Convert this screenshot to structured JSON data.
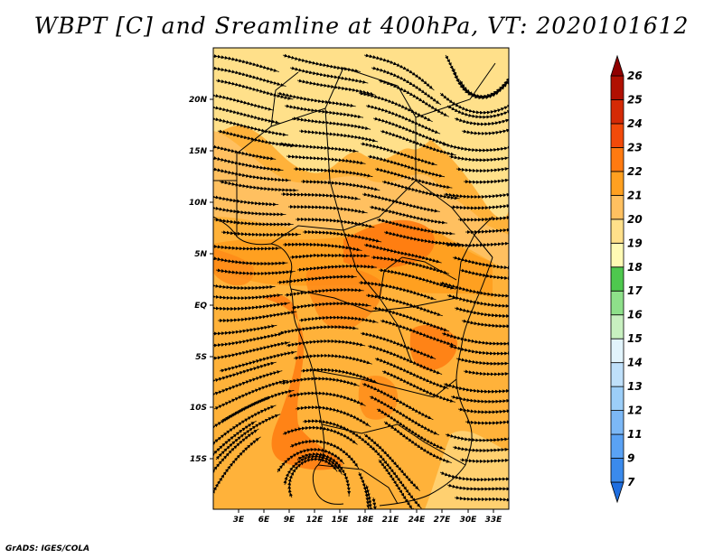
{
  "title": "WBPT [C] and Sreamline at 400hPa, VT: 2020101612",
  "credit": "GrADS: IGES/COLA",
  "lat_labels": [
    "20N",
    "15N",
    "10N",
    "5N",
    "EQ",
    "5S",
    "10S",
    "15S"
  ],
  "lon_labels": [
    "3E",
    "6E",
    "9E",
    "12E",
    "15E",
    "18E",
    "21E",
    "24E",
    "27E",
    "30E",
    "33E"
  ],
  "colorbar": {
    "labels": [
      "7",
      "9",
      "11",
      "12",
      "13",
      "14",
      "15",
      "16",
      "17",
      "18",
      "19",
      "20",
      "21",
      "22",
      "23",
      "24",
      "25",
      "26"
    ],
    "colors": [
      "#1e6ee0",
      "#3a8aec",
      "#5aa2f4",
      "#7cb8f6",
      "#9ccef8",
      "#bfe0fa",
      "#e2f4fc",
      "#c8f0c0",
      "#8ee08a",
      "#4ec84e",
      "#fffab4",
      "#ffe08a",
      "#ffc060",
      "#ffa020",
      "#ff7a10",
      "#f24a0a",
      "#d42a06",
      "#b01002",
      "#900000"
    ]
  },
  "map": {
    "base_color": "#ffb23a",
    "palette": {
      "light": "#ffe08a",
      "medium": "#ffc060",
      "orange": "#ffa020",
      "deep": "#ff7a10"
    }
  }
}
